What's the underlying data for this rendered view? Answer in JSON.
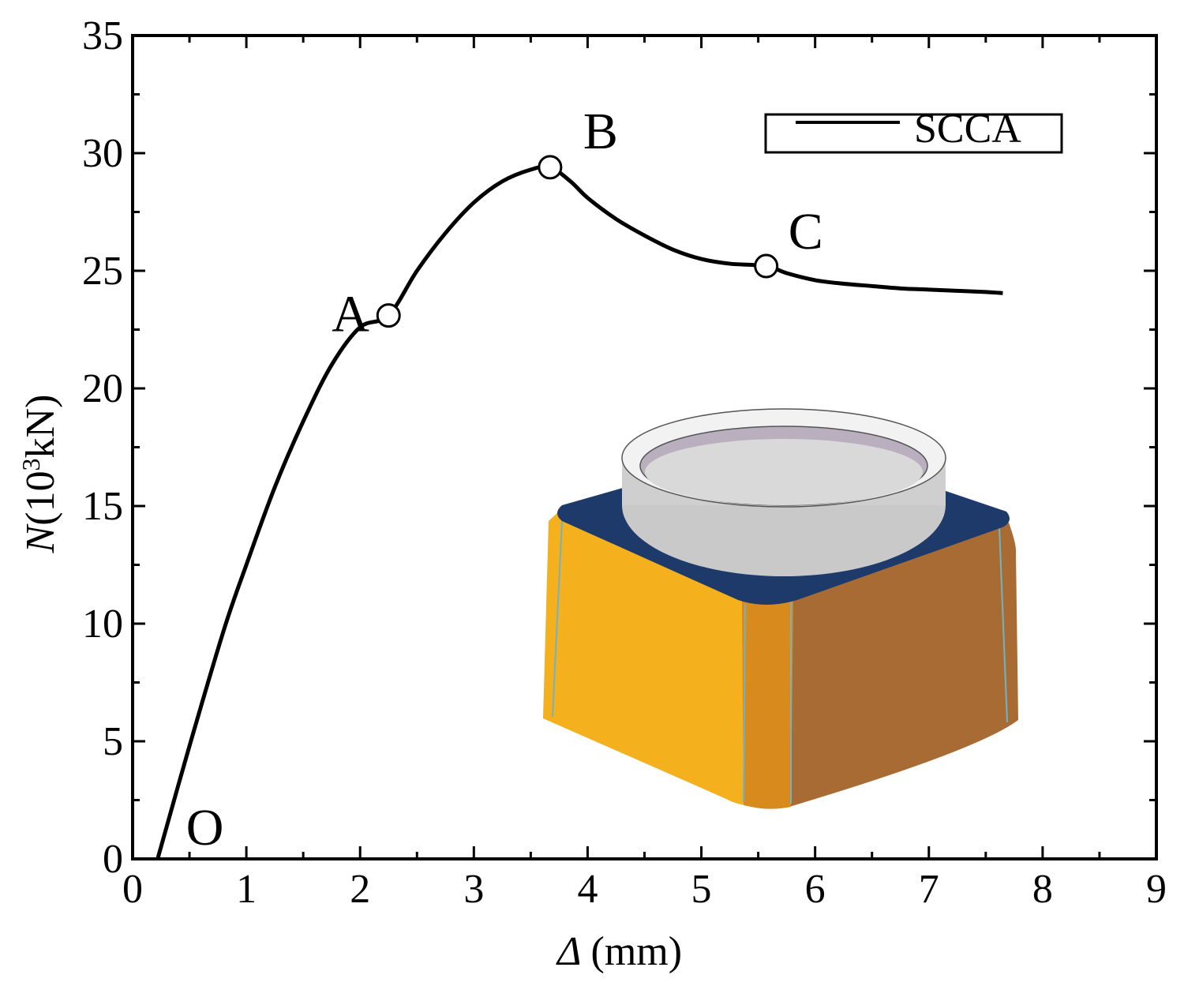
{
  "chart_data": {
    "type": "line",
    "xlabel": "Δ (mm)",
    "xlabel_symbol": "Δ",
    "xlabel_unit": "(mm)",
    "ylabel": "N(10³kN)",
    "ylabel_symbol": "N",
    "ylabel_unit_prefix": "(10",
    "ylabel_unit_exp": "3",
    "ylabel_unit_suffix": "kN)",
    "xlim": [
      0,
      9
    ],
    "ylim": [
      0,
      35
    ],
    "x_ticks": [
      "0",
      "1",
      "2",
      "3",
      "4",
      "5",
      "6",
      "7",
      "8",
      "9"
    ],
    "y_ticks": [
      "0",
      "5",
      "10",
      "15",
      "20",
      "25",
      "30",
      "35"
    ],
    "grid": false,
    "legend": "top-right",
    "series": [
      {
        "name": "SCCA",
        "color": "#000000",
        "x": [
          0.22,
          0.5,
          0.8,
          1.0,
          1.25,
          1.5,
          1.75,
          2.0,
          2.25,
          2.5,
          2.75,
          3.0,
          3.25,
          3.5,
          3.67,
          3.85,
          4.0,
          4.25,
          4.5,
          4.75,
          5.0,
          5.25,
          5.57,
          5.75,
          6.0,
          6.25,
          6.5,
          6.75,
          7.0,
          7.25,
          7.5,
          7.65
        ],
        "y": [
          0.0,
          4.8,
          9.7,
          12.5,
          15.8,
          18.6,
          21.0,
          22.6,
          23.1,
          25.0,
          26.6,
          27.9,
          28.8,
          29.3,
          29.4,
          28.8,
          28.1,
          27.2,
          26.5,
          25.9,
          25.5,
          25.3,
          25.2,
          24.9,
          24.6,
          24.45,
          24.35,
          24.25,
          24.2,
          24.15,
          24.1,
          24.05
        ]
      }
    ],
    "points": [
      {
        "label": "O",
        "x": 0.22,
        "y": 0.0,
        "marker": false
      },
      {
        "label": "A",
        "x": 2.25,
        "y": 23.1,
        "marker": true
      },
      {
        "label": "B",
        "x": 3.67,
        "y": 29.4,
        "marker": true
      },
      {
        "label": "C",
        "x": 5.57,
        "y": 25.2,
        "marker": true
      }
    ],
    "inset": {
      "description": "3D model of square base with circular ring on top",
      "base_color": "#F5B01E",
      "base_shade_color": "#A86B34",
      "top_color": "#1D3A6B",
      "ring_color": "#D8D8D8"
    }
  }
}
